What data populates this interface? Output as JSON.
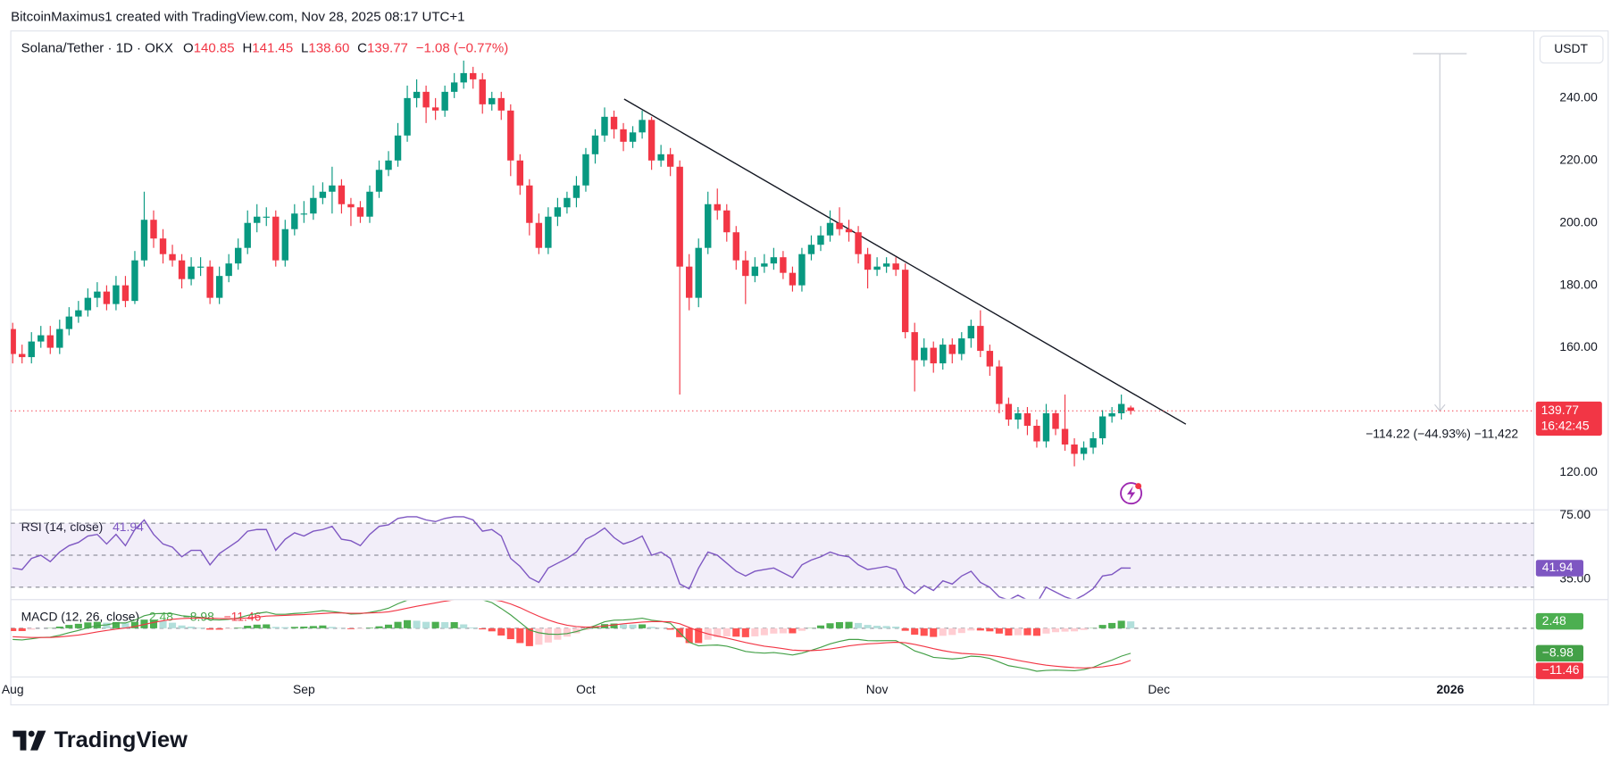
{
  "header": "BitcoinMaximus1 created with TradingView.com, Nov 28, 2025 08:17 UTC+1",
  "brand": "TradingView",
  "chart_data": [
    {
      "type": "candlestick",
      "title": "Solana/Tether · 1D · OKX",
      "ohlc_labels": [
        "O",
        "H",
        "L",
        "C"
      ],
      "ohlc_value_labels": [
        "140.85",
        "141.45",
        "138.60",
        "139.77"
      ],
      "change_label": "−1.08 (−0.77%)",
      "axis_unit": "USDT",
      "countdown": "16:42:45",
      "measurement_label": "−114.22 (−44.93%) −11,422",
      "open": [
        166,
        158,
        157,
        162,
        164,
        160,
        166,
        170,
        172,
        176,
        178,
        174,
        180,
        175,
        188,
        201,
        195,
        190,
        188,
        182,
        186,
        186,
        176,
        183,
        187,
        192,
        200,
        202,
        202,
        188,
        198,
        203,
        203,
        208,
        210,
        212,
        206,
        205,
        202,
        210,
        217,
        220,
        228,
        240,
        242,
        237,
        236,
        242,
        245,
        248,
        246,
        238,
        240,
        236,
        220,
        212,
        200,
        192,
        202,
        205,
        208,
        212,
        222,
        228,
        234,
        230,
        226,
        229,
        233,
        220,
        222,
        218,
        186,
        176,
        192,
        206,
        204,
        197,
        188,
        183,
        186,
        187,
        189,
        184,
        180,
        190,
        193,
        196,
        200,
        198,
        197,
        190,
        185,
        186,
        187,
        185,
        165,
        156,
        160,
        155,
        161,
        158,
        163,
        167,
        159,
        154,
        142,
        137,
        139,
        135,
        130,
        139,
        134,
        129,
        126,
        128,
        131,
        138,
        139,
        140.85
      ],
      "high": [
        168,
        161,
        165,
        167,
        167,
        169,
        173,
        175,
        179,
        181,
        180,
        183,
        183,
        191,
        210,
        204,
        198,
        193,
        190,
        189,
        189,
        188,
        186,
        190,
        195,
        204,
        206,
        205,
        204,
        201,
        206,
        207,
        212,
        213,
        218,
        214,
        208,
        207,
        212,
        220,
        223,
        232,
        244,
        246,
        244,
        240,
        244,
        248,
        252,
        250,
        248,
        242,
        242,
        238,
        222,
        214,
        203,
        205,
        208,
        210,
        215,
        224,
        230,
        237,
        236,
        232,
        231,
        236,
        234,
        225,
        224,
        220,
        190,
        195,
        210,
        211,
        206,
        199,
        191,
        189,
        190,
        192,
        191,
        186,
        192,
        196,
        199,
        204,
        205,
        201,
        199,
        192,
        189,
        189,
        189,
        187,
        168,
        163,
        162,
        163,
        163,
        165,
        169,
        172,
        161,
        156,
        144,
        141,
        141,
        137,
        142,
        140,
        145,
        131,
        130,
        133,
        140,
        141,
        145,
        141.45
      ],
      "low": [
        155,
        155,
        155,
        160,
        158,
        158,
        164,
        168,
        170,
        173,
        172,
        172,
        173,
        174,
        186,
        192,
        187,
        186,
        179,
        180,
        183,
        174,
        174,
        181,
        185,
        190,
        197,
        199,
        186,
        186,
        196,
        200,
        201,
        206,
        203,
        203,
        199,
        200,
        200,
        208,
        215,
        218,
        226,
        237,
        232,
        233,
        234,
        240,
        243,
        243,
        235,
        236,
        233,
        215,
        209,
        196,
        190,
        190,
        199,
        203,
        205,
        210,
        219,
        226,
        227,
        223,
        224,
        227,
        217,
        218,
        215,
        145,
        172,
        173,
        190,
        201,
        194,
        185,
        174,
        181,
        184,
        185,
        182,
        178,
        178,
        188,
        191,
        194,
        196,
        194,
        187,
        179,
        183,
        184,
        183,
        163,
        146,
        154,
        152,
        153,
        155,
        156,
        160,
        157,
        151,
        139,
        135,
        134,
        132,
        128,
        128,
        132,
        127,
        122,
        124,
        126,
        129,
        136,
        137,
        138.6
      ],
      "close": [
        158,
        157,
        162,
        164,
        160,
        166,
        170,
        172,
        176,
        178,
        174,
        180,
        175,
        188,
        201,
        195,
        190,
        188,
        182,
        186,
        186,
        176,
        183,
        187,
        192,
        200,
        202,
        202,
        188,
        198,
        203,
        203,
        208,
        210,
        212,
        206,
        205,
        202,
        210,
        217,
        220,
        228,
        240,
        242,
        237,
        236,
        242,
        245,
        248,
        246,
        238,
        240,
        236,
        220,
        212,
        200,
        192,
        202,
        205,
        208,
        212,
        222,
        228,
        234,
        230,
        226,
        229,
        233,
        220,
        222,
        218,
        186,
        176,
        192,
        206,
        204,
        197,
        188,
        183,
        186,
        187,
        189,
        184,
        180,
        190,
        193,
        196,
        200,
        198,
        197,
        190,
        185,
        186,
        187,
        185,
        165,
        156,
        160,
        155,
        161,
        158,
        163,
        167,
        159,
        154,
        142,
        137,
        139,
        135,
        130,
        139,
        134,
        129,
        126,
        128,
        131,
        138,
        139,
        142,
        139.77
      ],
      "colors": {
        "up": "#089981",
        "down": "#f23645"
      },
      "xlim": [
        -0.2,
        161.9
      ],
      "xticks": [
        {
          "value": 0,
          "label": "Aug"
        },
        {
          "value": 31,
          "label": "Sep"
        },
        {
          "value": 61,
          "label": "Oct"
        },
        {
          "value": 92,
          "label": "Nov"
        },
        {
          "value": 122,
          "label": "Dec"
        },
        {
          "value": 153,
          "label": "2026"
        }
      ],
      "ylim": [
        108.4,
        261.5
      ],
      "yticks": [
        {
          "value": 120,
          "label": "120.00"
        },
        {
          "value": 140,
          "label": "140.00"
        },
        {
          "value": 160,
          "label": "160.00"
        },
        {
          "value": 180,
          "label": "180.00"
        },
        {
          "value": 200,
          "label": "200.00"
        },
        {
          "value": 220,
          "label": "220.00"
        },
        {
          "value": 240,
          "label": "240.00"
        }
      ],
      "grid": false
    },
    {
      "type": "line",
      "title": "RSI (14, close)",
      "color": "#7e57c2",
      "band_color": "rgba(126,87,194,0.1)",
      "values": [
        42,
        41,
        48,
        50,
        46,
        52,
        56,
        58,
        62,
        63,
        57,
        63,
        56,
        66,
        72,
        63,
        57,
        55,
        49,
        53,
        53,
        44,
        51,
        55,
        59,
        65,
        66,
        66,
        53,
        60,
        64,
        62,
        65,
        66,
        68,
        60,
        59,
        56,
        63,
        68,
        69,
        73,
        74,
        74,
        72,
        71,
        73,
        74,
        74,
        72,
        65,
        66,
        62,
        48,
        43,
        36,
        33,
        42,
        45,
        48,
        52,
        60,
        63,
        67,
        61,
        57,
        59,
        62,
        50,
        52,
        48,
        32,
        29,
        42,
        52,
        50,
        45,
        40,
        37,
        40,
        41,
        42,
        39,
        36,
        44,
        47,
        49,
        52,
        50,
        49,
        44,
        41,
        42,
        43,
        41,
        30,
        26,
        31,
        28,
        34,
        32,
        37,
        40,
        33,
        30,
        24,
        22,
        25,
        22,
        20,
        30,
        27,
        24,
        22,
        25,
        29,
        37,
        38,
        42,
        41.94
      ],
      "ylim": [
        22.9,
        77.7
      ],
      "yticks": [
        {
          "value": 75,
          "label": "75.00"
        },
        {
          "value": 35,
          "label": "35.00"
        }
      ],
      "levels": [
        30,
        50,
        70
      ]
    },
    {
      "type": "macd",
      "title": "MACD (12, 26, close)",
      "histogram": {
        "values": [
          -1,
          -1,
          -0.5,
          0,
          0.1,
          0.6,
          1.2,
          1.6,
          2.1,
          2.3,
          2.0,
          2.2,
          1.8,
          2.3,
          3.1,
          3.1,
          2.6,
          2.0,
          1.0,
          0.6,
          0.2,
          -0.5,
          -0.5,
          -0.2,
          0.2,
          0.9,
          1.3,
          1.4,
          0.5,
          0.4,
          0.5,
          0.6,
          0.8,
          1.0,
          0.5,
          0.1,
          -0.3,
          -0.2,
          0.2,
          0.7,
          1.3,
          2.3,
          2.9,
          2.7,
          2.3,
          2.3,
          2.2,
          2.2,
          1.4,
          0.3,
          -0.4,
          -1.1,
          -2.6,
          -3.9,
          -5.3,
          -6.4,
          -5.9,
          -5.1,
          -4.1,
          -3.0,
          -1.8,
          -0.6,
          0.5,
          1.5,
          1.7,
          1.4,
          1.3,
          1.4,
          0.5,
          0.1,
          -0.5,
          -3.2,
          -5.3,
          -5.3,
          -4.1,
          -3.2,
          -2.9,
          -3.0,
          -3.2,
          -2.9,
          -2.5,
          -1.9,
          -1.8,
          -1.8,
          -0.9,
          0.1,
          1.0,
          1.8,
          2.2,
          2.3,
          1.9,
          1.2,
          0.9,
          0.8,
          0.6,
          -0.9,
          -2.3,
          -2.7,
          -3.1,
          -2.7,
          -2.4,
          -1.7,
          -0.8,
          -0.8,
          -1.1,
          -1.9,
          -2.6,
          -2.5,
          -2.5,
          -2.7,
          -1.9,
          -1.4,
          -1.2,
          -1.1,
          -0.6,
          0.1,
          1.2,
          1.9,
          2.7,
          2.48
        ],
        "colors": {
          "grow_above": "#4caf50",
          "fall_above": "#b2dfdb",
          "grow_below": "#ffcdd2",
          "fall_below": "#ff5252"
        }
      },
      "macd": {
        "values": [
          -4,
          -4.2,
          -3.8,
          -3.3,
          -3.2,
          -2.5,
          -1.6,
          -0.8,
          0.2,
          1.0,
          1.2,
          1.9,
          1.9,
          2.9,
          4.5,
          5.2,
          5.3,
          5.2,
          4.5,
          4.2,
          3.9,
          3.1,
          3.0,
          3.2,
          3.7,
          4.6,
          5.3,
          5.8,
          5.0,
          5.0,
          5.3,
          5.5,
          5.9,
          6.3,
          6.0,
          5.6,
          5.1,
          5.2,
          5.7,
          6.3,
          7.2,
          8.8,
          10.1,
          10.6,
          10.8,
          11.4,
          11.9,
          12.4,
          12.0,
          11.0,
          10.2,
          9.2,
          7.1,
          4.8,
          2.1,
          -0.6,
          -1.6,
          -2.1,
          -2.2,
          -1.9,
          -1.2,
          -0.2,
          1.0,
          2.3,
          2.9,
          3.0,
          3.2,
          3.6,
          2.9,
          2.5,
          1.8,
          -1.6,
          -5.0,
          -6.3,
          -6.1,
          -6.0,
          -6.4,
          -7.3,
          -8.3,
          -8.7,
          -8.9,
          -8.7,
          -9.1,
          -9.6,
          -8.9,
          -7.9,
          -6.8,
          -5.6,
          -4.7,
          -4.0,
          -4.0,
          -4.4,
          -4.5,
          -4.4,
          -4.4,
          -6.1,
          -8.1,
          -9.2,
          -10.4,
          -10.7,
          -11.0,
          -10.7,
          -10.0,
          -10.2,
          -10.8,
          -12.1,
          -13.4,
          -14.0,
          -14.6,
          -15.4,
          -15.1,
          -15.0,
          -15.1,
          -15.2,
          -14.8,
          -14.0,
          -12.6,
          -11.4,
          -10.0,
          -8.98
        ],
        "color": "#43a047",
        "value_label": "−8.98"
      },
      "signal": {
        "values": [
          -3,
          -3.2,
          -3.3,
          -3.3,
          -3.3,
          -3.1,
          -2.8,
          -2.4,
          -1.9,
          -1.3,
          -0.8,
          -0.3,
          0.1,
          0.6,
          1.4,
          2.1,
          2.7,
          3.2,
          3.5,
          3.6,
          3.7,
          3.6,
          3.5,
          3.4,
          3.5,
          3.7,
          4.0,
          4.4,
          4.5,
          4.6,
          4.8,
          4.9,
          5.1,
          5.3,
          5.5,
          5.5,
          5.4,
          5.4,
          5.5,
          5.6,
          5.9,
          6.5,
          7.2,
          7.9,
          8.5,
          9.1,
          9.7,
          10.2,
          10.6,
          10.7,
          10.6,
          10.3,
          9.7,
          8.7,
          7.4,
          5.8,
          4.3,
          3.0,
          1.9,
          1.1,
          0.6,
          0.4,
          0.5,
          0.8,
          1.2,
          1.6,
          1.9,
          2.2,
          2.4,
          2.4,
          2.3,
          1.6,
          0.3,
          -1.0,
          -2.0,
          -2.8,
          -3.5,
          -4.3,
          -5.1,
          -5.8,
          -6.4,
          -6.8,
          -7.3,
          -7.8,
          -8.0,
          -8.0,
          -7.8,
          -7.4,
          -6.9,
          -6.3,
          -5.9,
          -5.6,
          -5.4,
          -5.2,
          -5.0,
          -5.2,
          -5.8,
          -6.5,
          -7.3,
          -8.0,
          -8.6,
          -9.0,
          -9.2,
          -9.4,
          -9.7,
          -10.2,
          -10.8,
          -11.5,
          -12.1,
          -12.7,
          -13.2,
          -13.6,
          -13.9,
          -14.1,
          -14.2,
          -14.1,
          -13.8,
          -13.3,
          -12.7,
          -11.46
        ],
        "color": "#f23645",
        "value_label": "−11.46"
      },
      "ylim": [
        -17.1,
        9.9
      ]
    }
  ]
}
